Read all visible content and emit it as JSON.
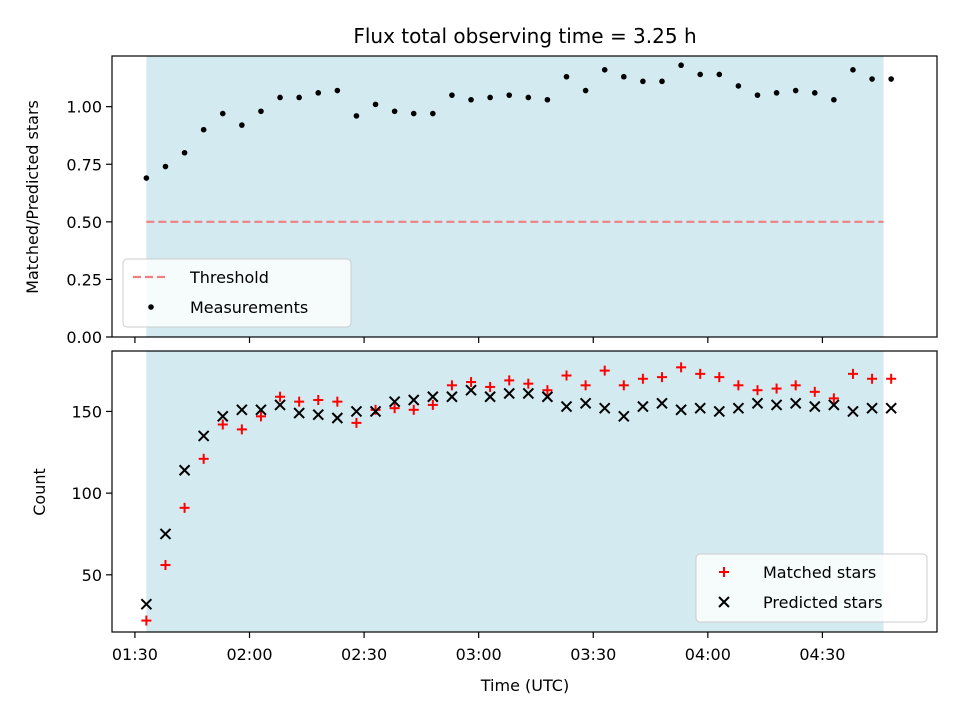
{
  "chart_data": [
    {
      "type": "scatter",
      "title": "Flux total observing time = 3.25 h",
      "xlabel": "",
      "ylabel": "Matched/Predicted stars",
      "ylim": [
        0,
        1.22
      ],
      "yticks": [
        0.0,
        0.25,
        0.5,
        0.75,
        1.0
      ],
      "ytick_labels": [
        "0.00",
        "0.25",
        "0.50",
        "0.75",
        "1.00"
      ],
      "xlim": [
        "01:24",
        "05:00"
      ],
      "shaded_span": [
        "01:33",
        "04:46"
      ],
      "shade_color": "#d3eaf0",
      "legend_position": "lower-left",
      "series": [
        {
          "name": "Threshold",
          "kind": "hline",
          "value": 0.5,
          "x_range": [
            "01:33",
            "04:46"
          ],
          "color": "#f08080",
          "dash": true
        },
        {
          "name": "Measurements",
          "kind": "points",
          "color": "#000000",
          "points": [
            [
              "01:33",
              0.69
            ],
            [
              "01:38",
              0.74
            ],
            [
              "01:43",
              0.8
            ],
            [
              "01:48",
              0.9
            ],
            [
              "01:53",
              0.97
            ],
            [
              "01:58",
              0.92
            ],
            [
              "02:03",
              0.98
            ],
            [
              "02:08",
              1.04
            ],
            [
              "02:13",
              1.04
            ],
            [
              "02:18",
              1.06
            ],
            [
              "02:23",
              1.07
            ],
            [
              "02:28",
              0.96
            ],
            [
              "02:33",
              1.01
            ],
            [
              "02:38",
              0.98
            ],
            [
              "02:43",
              0.97
            ],
            [
              "02:48",
              0.97
            ],
            [
              "02:53",
              1.05
            ],
            [
              "02:58",
              1.03
            ],
            [
              "03:03",
              1.04
            ],
            [
              "03:08",
              1.05
            ],
            [
              "03:13",
              1.04
            ],
            [
              "03:18",
              1.03
            ],
            [
              "03:23",
              1.13
            ],
            [
              "03:28",
              1.07
            ],
            [
              "03:33",
              1.16
            ],
            [
              "03:38",
              1.13
            ],
            [
              "03:43",
              1.11
            ],
            [
              "03:48",
              1.11
            ],
            [
              "03:53",
              1.18
            ],
            [
              "03:58",
              1.14
            ],
            [
              "04:03",
              1.14
            ],
            [
              "04:08",
              1.09
            ],
            [
              "04:13",
              1.05
            ],
            [
              "04:18",
              1.06
            ],
            [
              "04:23",
              1.07
            ],
            [
              "04:28",
              1.06
            ],
            [
              "04:33",
              1.03
            ],
            [
              "04:38",
              1.16
            ],
            [
              "04:43",
              1.12
            ],
            [
              "04:48",
              1.12
            ]
          ]
        }
      ]
    },
    {
      "type": "scatter",
      "title": "",
      "xlabel": "Time (UTC)",
      "ylabel": "Count",
      "ylim": [
        15,
        187
      ],
      "yticks": [
        50,
        100,
        150
      ],
      "ytick_labels": [
        "50",
        "100",
        "150"
      ],
      "xlim": [
        "01:24",
        "05:00"
      ],
      "xticks": [
        "01:30",
        "02:00",
        "02:30",
        "03:00",
        "03:30",
        "04:00",
        "04:30"
      ],
      "xtick_labels": [
        "01:30",
        "02:00",
        "02:30",
        "03:00",
        "03:30",
        "04:00",
        "04:30"
      ],
      "shaded_span": [
        "01:33",
        "04:46"
      ],
      "shade_color": "#d3eaf0",
      "legend_position": "lower-right",
      "series": [
        {
          "name": "Matched stars",
          "marker": "plus",
          "color": "#ff0000",
          "points": [
            [
              "01:33",
              22
            ],
            [
              "01:38",
              56
            ],
            [
              "01:43",
              91
            ],
            [
              "01:48",
              121
            ],
            [
              "01:53",
              142
            ],
            [
              "01:58",
              139
            ],
            [
              "02:03",
              147
            ],
            [
              "02:08",
              159
            ],
            [
              "02:13",
              156
            ],
            [
              "02:18",
              157
            ],
            [
              "02:23",
              156
            ],
            [
              "02:28",
              143
            ],
            [
              "02:33",
              151
            ],
            [
              "02:38",
              152
            ],
            [
              "02:43",
              151
            ],
            [
              "02:48",
              154
            ],
            [
              "02:53",
              166
            ],
            [
              "02:58",
              168
            ],
            [
              "03:03",
              165
            ],
            [
              "03:08",
              169
            ],
            [
              "03:13",
              167
            ],
            [
              "03:18",
              163
            ],
            [
              "03:23",
              172
            ],
            [
              "03:28",
              166
            ],
            [
              "03:33",
              175
            ],
            [
              "03:38",
              166
            ],
            [
              "03:43",
              170
            ],
            [
              "03:48",
              171
            ],
            [
              "03:53",
              177
            ],
            [
              "03:58",
              173
            ],
            [
              "04:03",
              171
            ],
            [
              "04:08",
              166
            ],
            [
              "04:13",
              163
            ],
            [
              "04:18",
              164
            ],
            [
              "04:23",
              166
            ],
            [
              "04:28",
              162
            ],
            [
              "04:33",
              158
            ],
            [
              "04:38",
              173
            ],
            [
              "04:43",
              170
            ],
            [
              "04:48",
              170
            ]
          ]
        },
        {
          "name": "Predicted stars",
          "marker": "x",
          "color": "#000000",
          "points": [
            [
              "01:33",
              32
            ],
            [
              "01:38",
              75
            ],
            [
              "01:43",
              114
            ],
            [
              "01:48",
              135
            ],
            [
              "01:53",
              147
            ],
            [
              "01:58",
              151
            ],
            [
              "02:03",
              151
            ],
            [
              "02:08",
              154
            ],
            [
              "02:13",
              149
            ],
            [
              "02:18",
              148
            ],
            [
              "02:23",
              146
            ],
            [
              "02:28",
              150
            ],
            [
              "02:33",
              150
            ],
            [
              "02:38",
              156
            ],
            [
              "02:43",
              157
            ],
            [
              "02:48",
              159
            ],
            [
              "02:53",
              159
            ],
            [
              "02:58",
              163
            ],
            [
              "03:03",
              159
            ],
            [
              "03:08",
              161
            ],
            [
              "03:13",
              161
            ],
            [
              "03:18",
              159
            ],
            [
              "03:23",
              153
            ],
            [
              "03:28",
              155
            ],
            [
              "03:33",
              152
            ],
            [
              "03:38",
              147
            ],
            [
              "03:43",
              153
            ],
            [
              "03:48",
              155
            ],
            [
              "03:53",
              151
            ],
            [
              "03:58",
              152
            ],
            [
              "04:03",
              150
            ],
            [
              "04:08",
              152
            ],
            [
              "04:13",
              155
            ],
            [
              "04:18",
              154
            ],
            [
              "04:23",
              155
            ],
            [
              "04:28",
              153
            ],
            [
              "04:33",
              154
            ],
            [
              "04:38",
              150
            ],
            [
              "04:43",
              152
            ],
            [
              "04:48",
              152
            ]
          ]
        }
      ]
    }
  ]
}
